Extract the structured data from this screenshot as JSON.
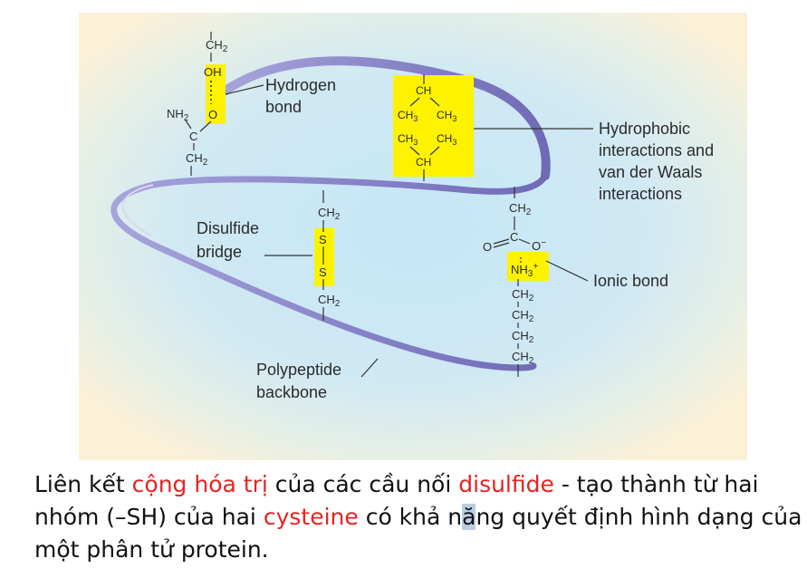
{
  "labels": {
    "hydrogen_bond": [
      "Hydrogen",
      "bond"
    ],
    "hydrophobic": [
      "Hydrophobic",
      "interactions and",
      "van der Waals",
      "interactions"
    ],
    "disulfide": [
      "Disulfide",
      "bridge"
    ],
    "ionic": "Ionic bond",
    "backbone": [
      "Polypeptide",
      "backbone"
    ]
  },
  "chem": {
    "ch2": "CH",
    "ch2_sub": "2",
    "ch3": "CH",
    "ch3_sub": "3",
    "ch": "CH",
    "oh": "OH",
    "o": "O",
    "nh2": "NH",
    "nh3": "NH",
    "nh3_sup": "+",
    "c": "C",
    "s": "S",
    "o_minus": "O",
    "minus": "−"
  },
  "caption": {
    "p1": "Liên kết ",
    "red1": "cộng hóa trị",
    "p2": " của các cầu nối ",
    "red2": "disulfide",
    "p3": " - tạo thành từ hai nhóm (–SH) của hai ",
    "red3": "cysteine",
    "p4": " có khả n",
    "hl": "ă",
    "p5": "ng quyết định hình dạng của một phân tử protein."
  },
  "colors": {
    "background_glow": "#c6e6f6",
    "background_edge": "#fbf1d7",
    "highlight": "#fff200",
    "backbone": "#8a86c9",
    "caption_red": "#e8231f"
  }
}
